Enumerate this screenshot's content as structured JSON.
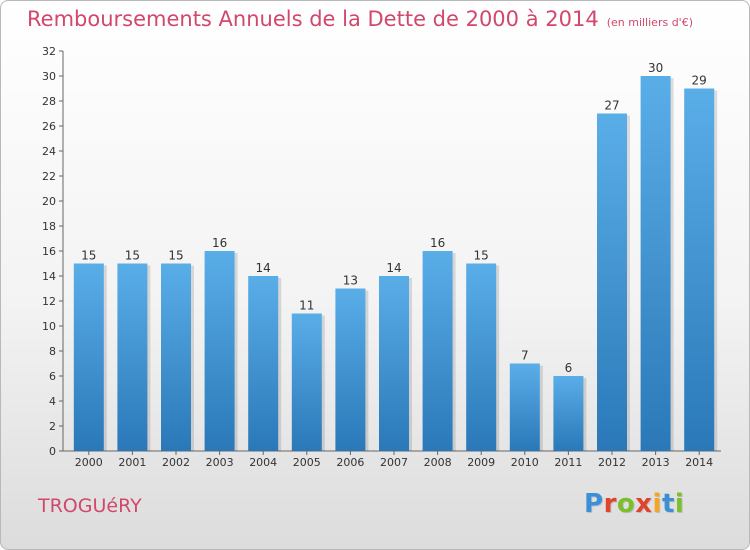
{
  "header": {
    "title": "Remboursements Annuels de la Dette de 2000 à 2014",
    "subtitle": "(en milliers d'€)"
  },
  "footer": {
    "commune": "TROGUéRY",
    "logo": "Proxiti",
    "logo_colors": [
      "#3a8fd6",
      "#e0442c",
      "#7bbf2a",
      "#e0442c",
      "#f4a623",
      "#3a8fd6",
      "#7bbf2a"
    ]
  },
  "chart_data": {
    "type": "bar",
    "title": "Remboursements Annuels de la Dette de 2000 à 2014",
    "subtitle": "(en milliers d'€)",
    "categories": [
      "2000",
      "2001",
      "2002",
      "2003",
      "2004",
      "2005",
      "2006",
      "2007",
      "2008",
      "2009",
      "2010",
      "2011",
      "2012",
      "2013",
      "2014"
    ],
    "values": [
      15,
      15,
      15,
      16,
      14,
      11,
      13,
      14,
      16,
      15,
      7,
      6,
      27,
      30,
      29
    ],
    "ylim": [
      0,
      32
    ],
    "yticks": [
      0,
      2,
      4,
      6,
      8,
      10,
      12,
      14,
      16,
      18,
      20,
      22,
      24,
      26,
      28,
      30,
      32
    ],
    "grid": false,
    "bar_color_top": "#5aaee8",
    "bar_color_bottom": "#2a78b8"
  }
}
